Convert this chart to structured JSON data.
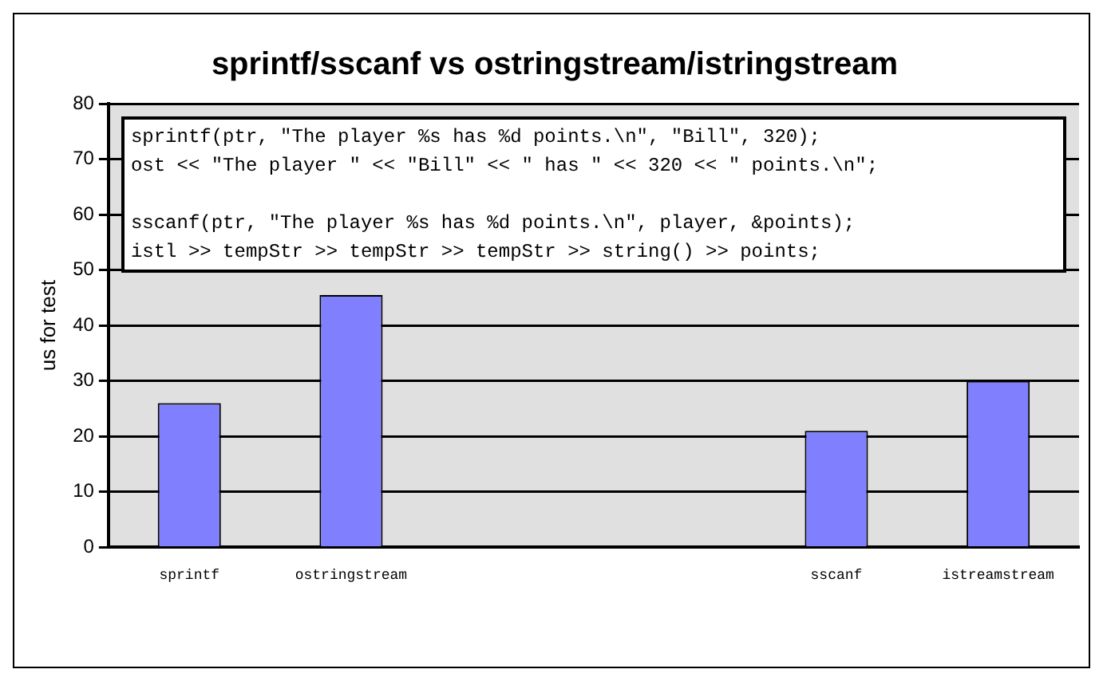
{
  "chart_data": {
    "type": "bar",
    "title": "sprintf/sscanf vs ostringstream/istringstream",
    "ylabel": "us for test",
    "categories": [
      "sprintf",
      "ostringstream",
      null,
      null,
      "sscanf",
      "istreamstream"
    ],
    "values": [
      26,
      45.5,
      null,
      null,
      21,
      30
    ],
    "color": "#8080ff",
    "ylim": [
      0,
      80
    ],
    "yticks": [
      0,
      10,
      20,
      30,
      40,
      50,
      60,
      70,
      80
    ],
    "grid": "y",
    "legend": false,
    "annotations": [
      "sprintf(ptr, \"The player %s has %d points.\\n\", \"Bill\", 320);",
      "ost << \"The player \" << \"Bill\" << \" has \" << 320 << \" points.\\n\";",
      "sscanf(ptr, \"The player %s has %d points.\\n\", player, &points);",
      "istl >> tempStr >> tempStr >> tempStr >> string() >> points;"
    ]
  }
}
